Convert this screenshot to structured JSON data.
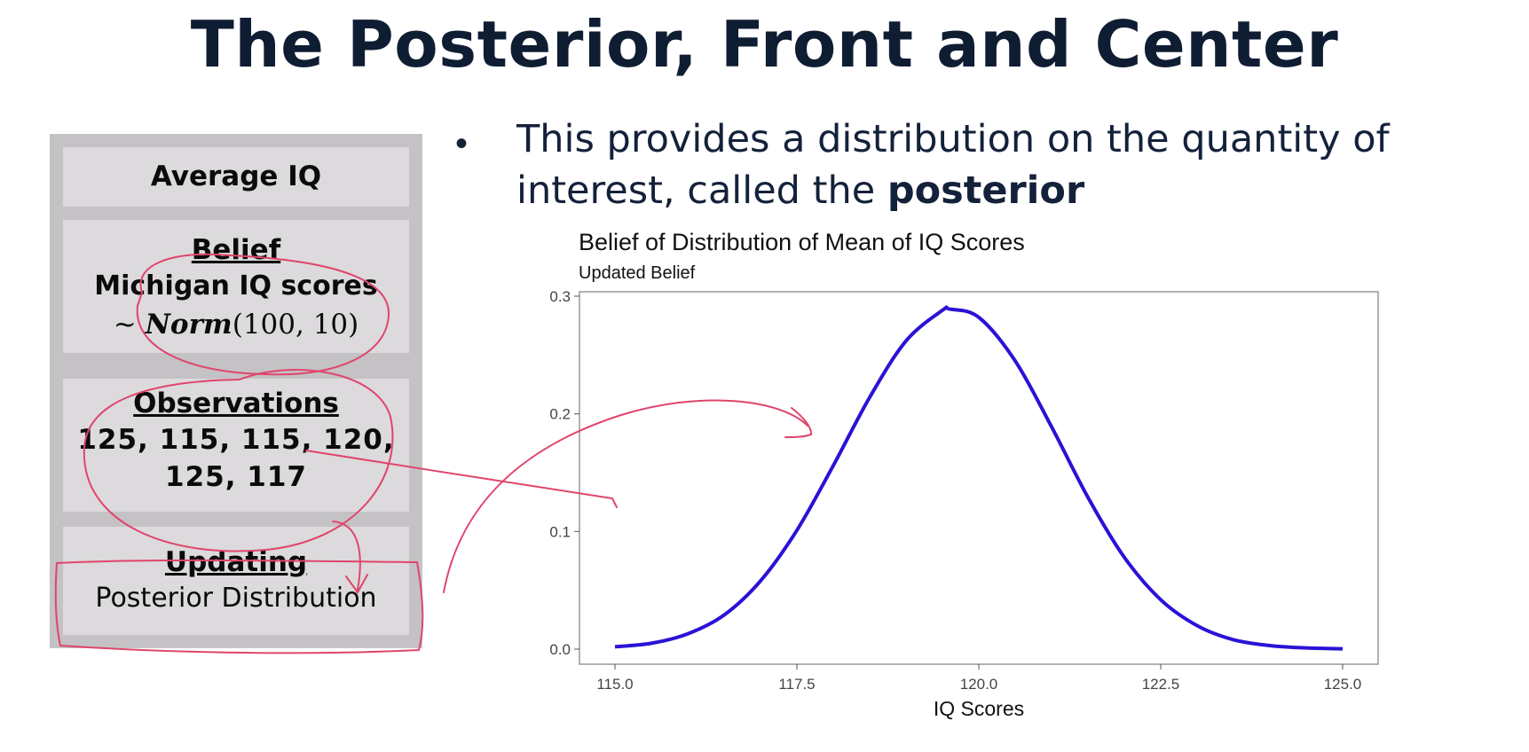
{
  "slide": {
    "title": "The Posterior, Front and Center"
  },
  "panel": {
    "average": {
      "heading": "Average IQ"
    },
    "belief": {
      "heading": "Belief",
      "line1": "Michigan IQ scores",
      "formula_prefix": "~ ",
      "formula_name": "Norm",
      "formula_args": "(100, 10)"
    },
    "observations": {
      "heading": "Observations",
      "line1": "125, 115, 115, 120,",
      "line2": "125, 117"
    },
    "updating": {
      "heading": "Updating",
      "line1": "Posterior Distribution"
    }
  },
  "bullet": {
    "text_before": "This provides a distribution on the quantity of interest, called the ",
    "text_bold": "posterior"
  },
  "colors": {
    "curve": "#2a12d6",
    "ink": "#e0456b"
  },
  "chart_data": {
    "type": "line",
    "title": "Belief of Distribution of Mean of IQ Scores",
    "subtitle": "Updated Belief",
    "xlabel": "IQ Scores",
    "ylabel": "",
    "xlim": [
      115.0,
      125.0
    ],
    "ylim": [
      0.0,
      0.3
    ],
    "x_ticks": [
      "115.0",
      "117.5",
      "120.0",
      "122.5",
      "125.0"
    ],
    "y_ticks": [
      "0.0",
      "0.1",
      "0.2",
      "0.3"
    ],
    "grid": false,
    "series": [
      {
        "x": [
          115.0,
          115.5,
          116.0,
          116.5,
          117.0,
          117.5,
          118.0,
          118.5,
          119.0,
          119.5,
          119.6,
          120.0,
          120.5,
          121.0,
          121.5,
          122.0,
          122.5,
          123.0,
          123.5,
          124.0,
          124.5,
          125.0
        ],
        "y": [
          0.002,
          0.005,
          0.013,
          0.029,
          0.058,
          0.101,
          0.156,
          0.214,
          0.262,
          0.288,
          0.289,
          0.282,
          0.245,
          0.189,
          0.129,
          0.078,
          0.042,
          0.02,
          0.008,
          0.003,
          0.001,
          0.0003
        ]
      }
    ]
  }
}
